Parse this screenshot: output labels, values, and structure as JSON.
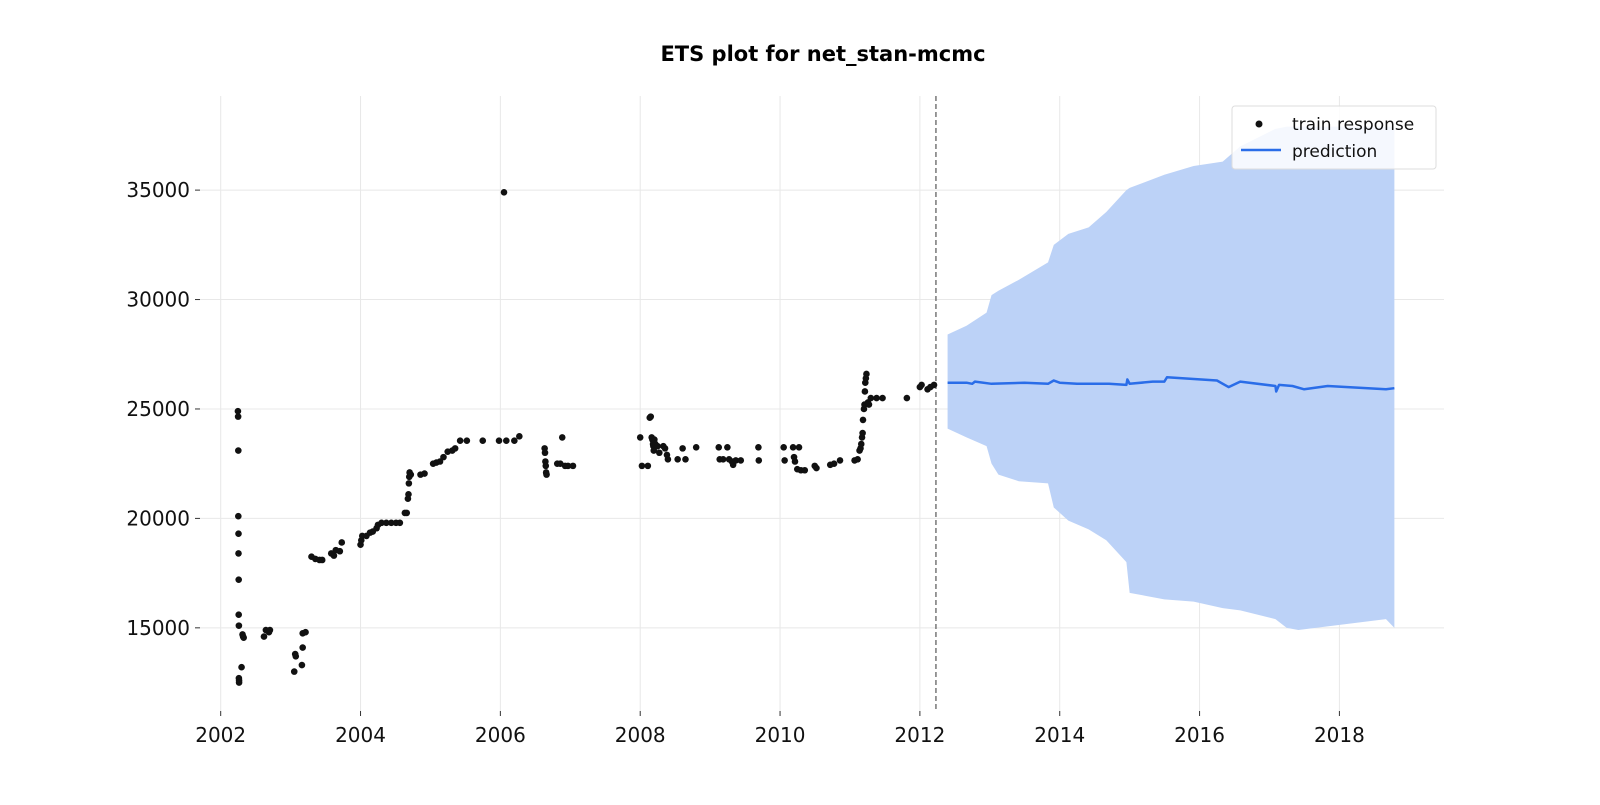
{
  "chart_data": {
    "type": "scatter",
    "title": "ETS plot for net_stan-mcmc",
    "xlabel": "",
    "ylabel": "",
    "x_ticks": [
      "2002",
      "2004",
      "2006",
      "2008",
      "2010",
      "2012",
      "2014",
      "2016",
      "2018"
    ],
    "y_ticks": [
      "15000",
      "20000",
      "25000",
      "30000",
      "35000"
    ],
    "xlim": [
      "2001-09-15",
      "2019-07-01"
    ],
    "ylim": [
      11200,
      39300
    ],
    "grid": true,
    "legend_position": "top-right",
    "colors": {
      "train": "#111111",
      "prediction": "#2a6de8",
      "band": "#bcd2f7",
      "cutoff": "#777777"
    },
    "cutoff_date": "2012-03-25",
    "series": [
      {
        "name": "train response",
        "kind": "scatter",
        "points": [
          [
            "2002-04-01",
            24900
          ],
          [
            "2002-04-02",
            24650
          ],
          [
            "2002-04-03",
            23100
          ],
          [
            "2002-04-03",
            20100
          ],
          [
            "2002-04-04",
            19300
          ],
          [
            "2002-04-04",
            18400
          ],
          [
            "2002-04-05",
            17200
          ],
          [
            "2002-04-05",
            15600
          ],
          [
            "2002-04-06",
            15100
          ],
          [
            "2002-04-06",
            12700
          ],
          [
            "2002-04-07",
            12600
          ],
          [
            "2002-04-07",
            12500
          ],
          [
            "2002-04-20",
            13200
          ],
          [
            "2002-04-25",
            14700
          ],
          [
            "2002-04-28",
            14600
          ],
          [
            "2002-05-01",
            14550
          ],
          [
            "2002-08-15",
            14600
          ],
          [
            "2002-08-25",
            14900
          ],
          [
            "2002-09-10",
            14800
          ],
          [
            "2002-09-15",
            14900
          ],
          [
            "2003-01-20",
            13000
          ],
          [
            "2003-01-25",
            13800
          ],
          [
            "2003-01-28",
            13700
          ],
          [
            "2003-03-01",
            13300
          ],
          [
            "2003-03-05",
            14100
          ],
          [
            "2003-03-05",
            14750
          ],
          [
            "2003-03-20",
            14800
          ],
          [
            "2003-04-20",
            18250
          ],
          [
            "2003-05-10",
            18150
          ],
          [
            "2003-06-01",
            18100
          ],
          [
            "2003-06-15",
            18100
          ],
          [
            "2003-08-01",
            18400
          ],
          [
            "2003-08-15",
            18300
          ],
          [
            "2003-08-25",
            18550
          ],
          [
            "2003-09-15",
            18500
          ],
          [
            "2003-09-25",
            18900
          ],
          [
            "2004-01-01",
            18800
          ],
          [
            "2004-01-05",
            19000
          ],
          [
            "2004-01-10",
            19200
          ],
          [
            "2004-02-01",
            19200
          ],
          [
            "2004-02-20",
            19350
          ],
          [
            "2004-03-05",
            19400
          ],
          [
            "2004-03-25",
            19550
          ],
          [
            "2004-04-01",
            19700
          ],
          [
            "2004-04-20",
            19800
          ],
          [
            "2004-05-15",
            19800
          ],
          [
            "2004-06-10",
            19800
          ],
          [
            "2004-07-05",
            19800
          ],
          [
            "2004-07-25",
            19800
          ],
          [
            "2004-08-20",
            20250
          ],
          [
            "2004-08-30",
            20250
          ],
          [
            "2004-09-05",
            20900
          ],
          [
            "2004-09-08",
            21100
          ],
          [
            "2004-09-10",
            21600
          ],
          [
            "2004-09-12",
            21900
          ],
          [
            "2004-09-14",
            22100
          ],
          [
            "2004-09-20",
            22000
          ],
          [
            "2004-11-10",
            22000
          ],
          [
            "2004-12-01",
            22050
          ],
          [
            "2005-01-15",
            22500
          ],
          [
            "2005-02-01",
            22550
          ],
          [
            "2005-02-20",
            22600
          ],
          [
            "2005-03-10",
            22800
          ],
          [
            "2005-04-01",
            23050
          ],
          [
            "2005-04-25",
            23100
          ],
          [
            "2005-05-10",
            23200
          ],
          [
            "2005-06-05",
            23550
          ],
          [
            "2005-07-10",
            23550
          ],
          [
            "2005-10-01",
            23550
          ],
          [
            "2005-12-25",
            23550
          ],
          [
            "2006-01-20",
            34900
          ],
          [
            "2006-02-01",
            23550
          ],
          [
            "2006-03-15",
            23550
          ],
          [
            "2006-04-10",
            23750
          ],
          [
            "2006-08-20",
            23200
          ],
          [
            "2006-08-22",
            23000
          ],
          [
            "2006-08-24",
            22600
          ],
          [
            "2006-08-26",
            22400
          ],
          [
            "2006-08-28",
            22100
          ],
          [
            "2006-08-30",
            22000
          ],
          [
            "2006-10-25",
            22500
          ],
          [
            "2006-11-10",
            22500
          ],
          [
            "2006-11-20",
            23700
          ],
          [
            "2006-12-05",
            22400
          ],
          [
            "2006-12-20",
            22400
          ],
          [
            "2007-01-15",
            22400
          ],
          [
            "2008-01-01",
            23700
          ],
          [
            "2008-01-10",
            22400
          ],
          [
            "2008-02-10",
            22400
          ],
          [
            "2008-02-20",
            24600
          ],
          [
            "2008-02-25",
            24650
          ],
          [
            "2008-03-01",
            23700
          ],
          [
            "2008-03-05",
            23600
          ],
          [
            "2008-03-08",
            23400
          ],
          [
            "2008-03-10",
            23300
          ],
          [
            "2008-03-12",
            23100
          ],
          [
            "2008-03-15",
            23600
          ],
          [
            "2008-03-20",
            23400
          ],
          [
            "2008-04-01",
            23300
          ],
          [
            "2008-04-10",
            23000
          ],
          [
            "2008-05-01",
            23300
          ],
          [
            "2008-05-10",
            23200
          ],
          [
            "2008-05-20",
            22900
          ],
          [
            "2008-05-25",
            22700
          ],
          [
            "2008-07-15",
            22700
          ],
          [
            "2008-08-10",
            23200
          ],
          [
            "2008-08-25",
            22700
          ],
          [
            "2008-10-20",
            23250
          ],
          [
            "2009-02-15",
            23250
          ],
          [
            "2009-02-20",
            22700
          ],
          [
            "2009-03-10",
            22700
          ],
          [
            "2009-04-01",
            23250
          ],
          [
            "2009-04-10",
            22700
          ],
          [
            "2009-04-25",
            22600
          ],
          [
            "2009-05-01",
            22450
          ],
          [
            "2009-05-15",
            22650
          ],
          [
            "2009-06-10",
            22650
          ],
          [
            "2009-09-10",
            23250
          ],
          [
            "2009-09-12",
            22650
          ],
          [
            "2010-01-20",
            23250
          ],
          [
            "2010-01-25",
            22650
          ],
          [
            "2010-03-10",
            23250
          ],
          [
            "2010-03-15",
            22800
          ],
          [
            "2010-03-20",
            22600
          ],
          [
            "2010-04-01",
            22250
          ],
          [
            "2010-04-10",
            23250
          ],
          [
            "2010-04-20",
            22200
          ],
          [
            "2010-05-10",
            22200
          ],
          [
            "2010-07-01",
            22400
          ],
          [
            "2010-07-10",
            22300
          ],
          [
            "2010-09-20",
            22450
          ],
          [
            "2010-10-10",
            22500
          ],
          [
            "2010-11-10",
            22650
          ],
          [
            "2011-01-25",
            22650
          ],
          [
            "2011-02-10",
            22700
          ],
          [
            "2011-02-20",
            23100
          ],
          [
            "2011-02-25",
            23200
          ],
          [
            "2011-03-01",
            23400
          ],
          [
            "2011-03-05",
            23700
          ],
          [
            "2011-03-08",
            23900
          ],
          [
            "2011-03-10",
            24500
          ],
          [
            "2011-03-15",
            25000
          ],
          [
            "2011-03-18",
            25200
          ],
          [
            "2011-03-20",
            25800
          ],
          [
            "2011-03-22",
            26200
          ],
          [
            "2011-03-25",
            26400
          ],
          [
            "2011-03-28",
            26600
          ],
          [
            "2011-04-05",
            25300
          ],
          [
            "2011-04-10",
            25200
          ],
          [
            "2011-04-20",
            25500
          ],
          [
            "2011-05-20",
            25500
          ],
          [
            "2011-06-20",
            25500
          ],
          [
            "2011-10-25",
            25500
          ],
          [
            "2012-01-01",
            26000
          ],
          [
            "2012-01-10",
            26100
          ],
          [
            "2012-02-10",
            25900
          ],
          [
            "2012-02-25",
            26000
          ],
          [
            "2012-03-15",
            26100
          ]
        ]
      },
      {
        "name": "prediction",
        "kind": "line",
        "points": [
          [
            "2012-05-25",
            26200
          ],
          [
            "2012-09-01",
            26200
          ],
          [
            "2012-10-01",
            26150
          ],
          [
            "2012-10-15",
            26250
          ],
          [
            "2013-01-10",
            26150
          ],
          [
            "2013-07-01",
            26200
          ],
          [
            "2013-11-01",
            26150
          ],
          [
            "2013-12-01",
            26300
          ],
          [
            "2014-01-01",
            26200
          ],
          [
            "2014-04-01",
            26150
          ],
          [
            "2014-09-15",
            26150
          ],
          [
            "2014-12-15",
            26100
          ],
          [
            "2014-12-20",
            26350
          ],
          [
            "2015-01-01",
            26150
          ],
          [
            "2015-05-01",
            26250
          ],
          [
            "2015-07-01",
            26250
          ],
          [
            "2015-07-15",
            26450
          ],
          [
            "2016-01-01",
            26350
          ],
          [
            "2016-04-01",
            26300
          ],
          [
            "2016-06-01",
            26000
          ],
          [
            "2016-08-01",
            26250
          ],
          [
            "2017-02-01",
            26050
          ],
          [
            "2017-02-05",
            25800
          ],
          [
            "2017-02-20",
            26100
          ],
          [
            "2017-05-01",
            26050
          ],
          [
            "2017-07-01",
            25900
          ],
          [
            "2017-11-01",
            26050
          ],
          [
            "2018-09-01",
            25900
          ],
          [
            "2018-10-15",
            25950
          ]
        ]
      },
      {
        "name": "prediction interval",
        "kind": "band",
        "points": [
          [
            "2012-05-25",
            24100,
            28400
          ],
          [
            "2012-09-01",
            23700,
            28800
          ],
          [
            "2012-12-15",
            23300,
            29400
          ],
          [
            "2013-01-10",
            22500,
            30200
          ],
          [
            "2013-02-15",
            22000,
            30400
          ],
          [
            "2013-06-01",
            21700,
            30900
          ],
          [
            "2013-11-01",
            21600,
            31700
          ],
          [
            "2013-12-01",
            20500,
            32500
          ],
          [
            "2014-02-15",
            19900,
            33000
          ],
          [
            "2014-06-01",
            19500,
            33300
          ],
          [
            "2014-09-01",
            19000,
            34000
          ],
          [
            "2014-12-15",
            18000,
            35000
          ],
          [
            "2015-01-01",
            16600,
            35100
          ],
          [
            "2015-07-01",
            16300,
            35700
          ],
          [
            "2015-12-01",
            16200,
            36100
          ],
          [
            "2016-05-01",
            15900,
            36300
          ],
          [
            "2016-08-01",
            15800,
            37000
          ],
          [
            "2017-02-01",
            15400,
            37800
          ],
          [
            "2017-04-01",
            15000,
            37900
          ],
          [
            "2017-06-01",
            14900,
            37900
          ],
          [
            "2018-09-01",
            15400,
            37900
          ],
          [
            "2018-10-15",
            15000,
            37900
          ]
        ]
      }
    ]
  }
}
